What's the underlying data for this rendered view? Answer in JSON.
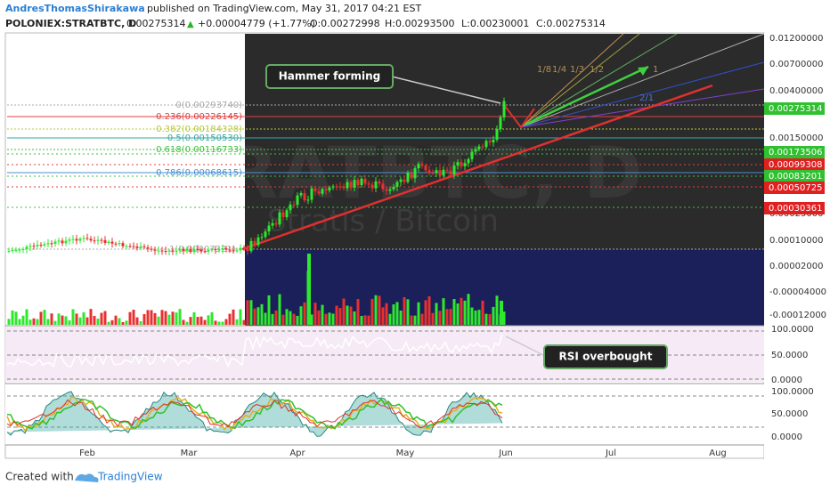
{
  "header": {
    "author": "AndresThomasShirakawa",
    "published": "published on TradingView.com, May 31, 2017 04:21 EST",
    "symbol": "POLONIEX:STRATBTC, D",
    "last": "0.00275314",
    "change": "+0.00004779 (+1.77%)",
    "open": "O:0.00272998",
    "high": "H:0.00293500",
    "low": "L:0.00230001",
    "close": "C:0.00275314"
  },
  "watermark": {
    "symbol": "STRATBTC, D",
    "name": "Stratis / Bitcoin"
  },
  "fib_levels": [
    "0(0.00293740)",
    "0.236(0.00226145)",
    "0.382(0.00184328)",
    "0.5(0.00150530)",
    "0.618(0.00116733)",
    "0.786(0.00068615)",
    "1(0.00007321)"
  ],
  "fan_labels": [
    "1/8",
    "1/4",
    "1/3",
    "1/2",
    "1",
    "2/1"
  ],
  "price_axis": [
    "0.01200000",
    "0.00700000",
    "0.00400000",
    "0.00150000",
    "0.00025000",
    "0.00010000",
    "0.00002000",
    "-0.00004000",
    "-0.00012000"
  ],
  "price_tags": [
    "0.00275314",
    "0.00173506",
    "0.00099308",
    "0.00083201",
    "0.00050725",
    "0.00030361"
  ],
  "rsi_axis": [
    "100.0000",
    "50.0000",
    "0.0000"
  ],
  "stoch_axis": [
    "100.0000",
    "50.0000",
    "0.0000"
  ],
  "time_axis": [
    "Feb",
    "Mar",
    "Apr",
    "May",
    "Jun",
    "Jul",
    "Aug"
  ],
  "annotations": [
    "Hammer forming",
    "RSI overbought"
  ],
  "footer": {
    "created": "Created with",
    "brand": "TradingView"
  }
}
